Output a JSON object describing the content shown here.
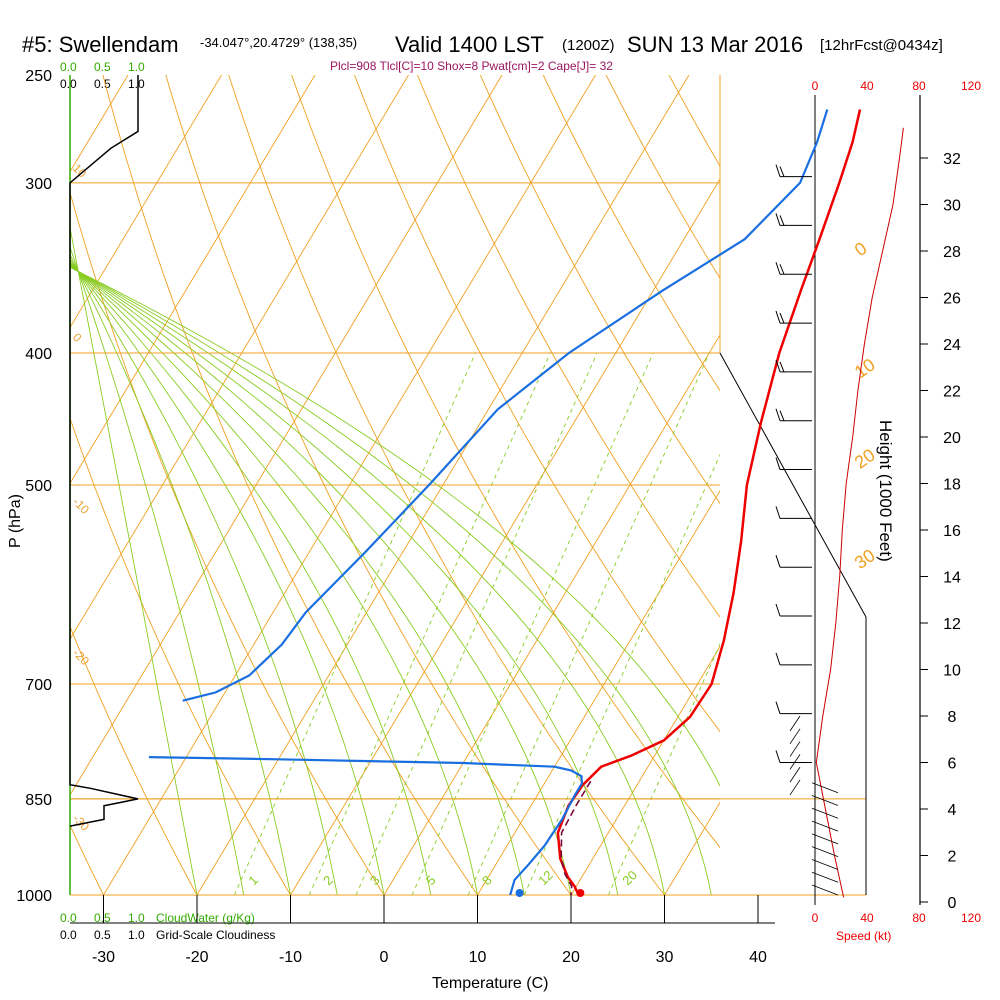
{
  "header": {
    "title_main": "#5: Swellendam",
    "title_coords": "-34.047°,20.4729° (138,35)",
    "valid": "Valid 1400 LST",
    "valid_z": "(1200Z)",
    "date": "SUN 13 Mar 2016",
    "fcst": "[12hrFcst@0434z]",
    "stats": "Plcl=908 Tlcl[C]=10 Shox=8 Pwat[cm]=2 Cape[J]= 32"
  },
  "labels": {
    "cloudwater_top": [
      "0.0",
      "0.5",
      "1.0"
    ],
    "cloudiness_top": [
      "0.0",
      "0.5",
      "1.0"
    ],
    "cloudwater_bottom": [
      "0.0",
      "0.5",
      "1.0"
    ],
    "cloudwater_text": "CloudWater (g/Kg)",
    "cloudiness_bottom": [
      "0.0",
      "0.5",
      "1.0"
    ],
    "cloudiness_text": "Grid-Scale Cloudiness",
    "speed_label": "Speed (kt)"
  },
  "colors": {
    "isobar": "#f0a020",
    "dry_adiabat": "#f0a020",
    "moist_adiabat": "#88cc22",
    "mixing_ratio": "#88cc22",
    "temperature": "#ee0000",
    "dewpoint": "#1a6fe0",
    "parcel": "#7a0a3a",
    "cloud": "#000000",
    "speed": "#cc0000",
    "axis_green": "#33aa00"
  },
  "chart_data": {
    "type": "line",
    "title": "#5: Swellendam",
    "xlabel": "Temperature (C)",
    "ylabel": "P (hPa)",
    "y2label": "Height (1000 Feet)",
    "xlim": [
      -34,
      46
    ],
    "x_ticks": [
      -30,
      -20,
      -10,
      0,
      10,
      20,
      30,
      40
    ],
    "pressure_ticks": [
      250,
      300,
      400,
      500,
      700,
      850,
      1000
    ],
    "height_ticks": [
      0,
      2,
      4,
      6,
      8,
      10,
      12,
      14,
      16,
      18,
      20,
      22,
      24,
      26,
      28,
      30,
      32
    ],
    "speed_ticks": [
      0,
      40,
      80,
      120
    ],
    "dry_adiabat_labels": [
      {
        "text": "0",
        "t": 36,
        "p": 340
      },
      {
        "text": "10",
        "t": 40,
        "p": 418
      },
      {
        "text": "20",
        "t": 44,
        "p": 487
      },
      {
        "text": "30",
        "t": 50,
        "p": 577
      }
    ],
    "moist_adiabat_labels": [
      {
        "text": "-10",
        "t": -34,
        "p": 515
      },
      {
        "text": "-20",
        "t": -34,
        "p": 665
      },
      {
        "text": "-30",
        "t": -34,
        "p": 880
      },
      {
        "text": "10",
        "t": -34,
        "p": 293
      },
      {
        "text": "0",
        "t": -34,
        "p": 390
      }
    ],
    "mixing_ratio_labels": [
      "1",
      "2",
      "3",
      "5",
      "8",
      "12",
      "20"
    ],
    "series": [
      {
        "name": "Temperature",
        "points": [
          [
            0.5,
            265
          ],
          [
            1.8,
            280
          ],
          [
            3.0,
            300
          ],
          [
            4.5,
            330
          ],
          [
            5.8,
            360
          ],
          [
            7.5,
            400
          ],
          [
            10.0,
            450
          ],
          [
            12.5,
            500
          ],
          [
            15.5,
            550
          ],
          [
            18.0,
            600
          ],
          [
            20.0,
            650
          ],
          [
            21.5,
            700
          ],
          [
            21.3,
            740
          ],
          [
            20.0,
            770
          ],
          [
            17.5,
            790
          ],
          [
            15.0,
            805
          ],
          [
            14.2,
            830
          ],
          [
            14.0,
            860
          ],
          [
            14.6,
            900
          ],
          [
            16.5,
            940
          ],
          [
            18.5,
            970
          ],
          [
            19.8,
            985
          ],
          [
            20.8,
            1000
          ]
        ]
      },
      {
        "name": "Dewpoint",
        "points": [
          [
            -3.0,
            265
          ],
          [
            -2.0,
            280
          ],
          [
            -1.2,
            300
          ],
          [
            -3.5,
            330
          ],
          [
            -9.0,
            360
          ],
          [
            -15.0,
            400
          ],
          [
            -19.0,
            440
          ],
          [
            -21.5,
            500
          ],
          [
            -24.0,
            560
          ],
          [
            -26.5,
            620
          ],
          [
            -27.0,
            655
          ],
          [
            -28.5,
            690
          ],
          [
            -31.0,
            710
          ],
          [
            -34.0,
            720
          ]
        ]
      },
      {
        "name": "Dewpoint low",
        "points": [
          [
            -34.0,
            792
          ],
          [
            -20.0,
            795
          ],
          [
            0.0,
            800
          ],
          [
            10.0,
            805
          ],
          [
            12.0,
            810
          ],
          [
            13.5,
            818
          ],
          [
            14.0,
            828
          ],
          [
            14.0,
            845
          ],
          [
            14.2,
            880
          ],
          [
            14.0,
            920
          ],
          [
            13.5,
            950
          ],
          [
            13.0,
            975
          ],
          [
            13.5,
            1000
          ]
        ]
      },
      {
        "name": "Parcel",
        "points": [
          [
            14.8,
            825
          ],
          [
            14.8,
            860
          ],
          [
            15.0,
            900
          ],
          [
            16.6,
            940
          ],
          [
            18.0,
            965
          ],
          [
            19.5,
            985
          ],
          [
            20.0,
            1000
          ]
        ]
      }
    ],
    "surface_temperature": 21.0,
    "surface_dewpoint": 14.5,
    "cloud_profile": [
      {
        "p": 250,
        "v": 1.0
      },
      {
        "p": 275,
        "v": 1.0
      },
      {
        "p": 283,
        "v": 0.6
      },
      {
        "p": 300,
        "v": 0.0
      },
      {
        "p": 830,
        "v": 0.0
      },
      {
        "p": 835,
        "v": 0.3
      },
      {
        "p": 850,
        "v": 1.0
      },
      {
        "p": 860,
        "v": 0.5
      },
      {
        "p": 880,
        "v": 0.5
      },
      {
        "p": 890,
        "v": 0.0
      }
    ],
    "speed_profile": [
      {
        "h": 0.2,
        "kt": 22
      },
      {
        "h": 2.0,
        "kt": 15
      },
      {
        "h": 4.0,
        "kt": 8
      },
      {
        "h": 6.0,
        "kt": 1
      },
      {
        "h": 8.0,
        "kt": 6
      },
      {
        "h": 10.0,
        "kt": 12
      },
      {
        "h": 12.0,
        "kt": 16
      },
      {
        "h": 14.0,
        "kt": 19
      },
      {
        "h": 16.0,
        "kt": 21
      },
      {
        "h": 18.0,
        "kt": 24
      },
      {
        "h": 20.0,
        "kt": 29
      },
      {
        "h": 22.0,
        "kt": 33
      },
      {
        "h": 24.0,
        "kt": 38
      },
      {
        "h": 26.0,
        "kt": 44
      },
      {
        "h": 28.0,
        "kt": 52
      },
      {
        "h": 30.0,
        "kt": 60
      },
      {
        "h": 32.0,
        "kt": 65
      },
      {
        "h": 33.3,
        "kt": 68
      }
    ]
  }
}
